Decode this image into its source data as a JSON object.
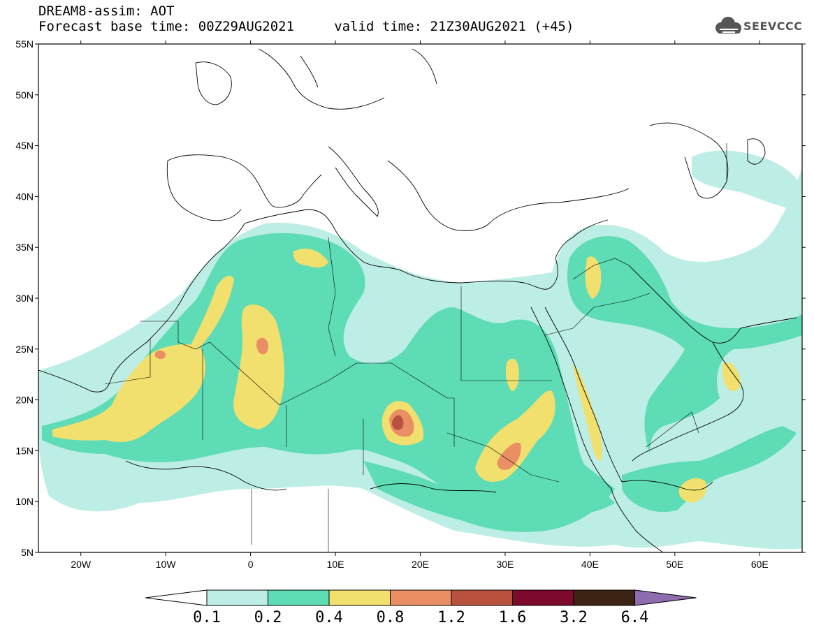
{
  "header": {
    "line1": "DREAM8-assim: AOT",
    "line2": "Forecast base time: 00Z29AUG2021     valid time: 21Z30AUG2021 (+45)",
    "logo_text": "SEEVCCC"
  },
  "map": {
    "region": "North Africa, Middle East and Europe",
    "lon_range": [
      -25,
      65
    ],
    "lat_range": [
      5,
      55
    ],
    "lat_ticks": [
      "55N",
      "50N",
      "45N",
      "40N",
      "35N",
      "30N",
      "25N",
      "20N",
      "15N",
      "10N",
      "5N"
    ],
    "lon_ticks": [
      "20W",
      "10W",
      "0",
      "10E",
      "20E",
      "30E",
      "40E",
      "50E",
      "60E"
    ],
    "variable": "Aerosol optical thickness"
  },
  "colorbar": {
    "labels": [
      "0.1",
      "0.2",
      "0.4",
      "0.8",
      "1.2",
      "1.6",
      "3.2",
      "6.4"
    ],
    "colors": [
      "#bdeee5",
      "#5ddcb5",
      "#f1df6e",
      "#e98f63",
      "#b8523f",
      "#7d0a2d",
      "#3d2314",
      "#8f6bb0"
    ],
    "arrow_low_color": "#ffffff"
  }
}
